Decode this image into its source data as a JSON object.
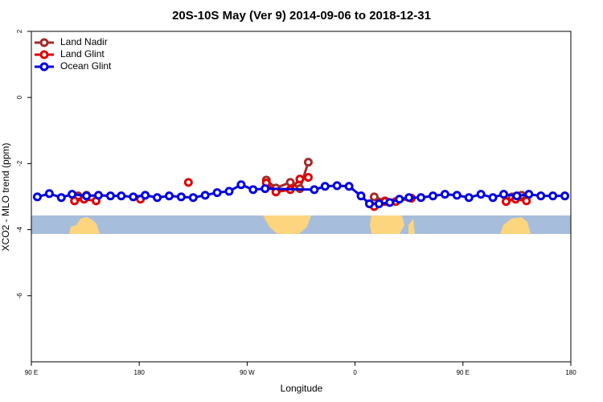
{
  "chart_data": {
    "type": "line",
    "title": "20S-10S May (Ver 9)   2014-09-06 to 2018-12-31",
    "xlabel": "Longitude",
    "ylabel": "XCO2 - MLO trend (ppm)",
    "xlim": [
      90,
      540
    ],
    "xticks": [
      {
        "value": 90,
        "label": "90 E"
      },
      {
        "value": 180,
        "label": "180"
      },
      {
        "value": 270,
        "label": "90 W"
      },
      {
        "value": 360,
        "label": "0"
      },
      {
        "value": 450,
        "label": "90 E"
      },
      {
        "value": 540,
        "label": "180"
      }
    ],
    "ylim": [
      -8,
      2
    ],
    "yticks": [
      2,
      0,
      -2,
      -4,
      -6
    ],
    "legend": "upper-left",
    "series": [
      {
        "name": "Land Nadir",
        "color": "#a52a2a",
        "x": [
          129,
          136,
          null,
          286,
          294,
          306,
          314,
          321,
          null,
          376,
          385,
          null,
          491,
          499
        ],
        "values": [
          -2.98,
          -2.96,
          null,
          -2.5,
          -2.74,
          -2.57,
          -2.76,
          -1.96,
          null,
          -3.01,
          -3.13,
          null,
          -3.01,
          -2.96
        ]
      },
      {
        "name": "Land Glint",
        "color": "#e00000",
        "x": [
          126,
          134,
          144,
          null,
          181,
          null,
          221,
          null,
          286,
          294,
          306,
          314,
          321,
          null,
          376,
          385,
          394,
          407,
          null,
          486,
          494,
          503
        ],
        "values": [
          -3.13,
          -3.08,
          -3.13,
          null,
          -3.08,
          null,
          -2.57,
          null,
          -2.59,
          -2.86,
          -2.79,
          -2.47,
          -2.42,
          null,
          -3.3,
          -3.15,
          -3.15,
          -3.05,
          null,
          -3.15,
          -3.08,
          -3.13
        ]
      },
      {
        "name": "Ocean Glint",
        "color": "#0000e0",
        "x": [
          95,
          105,
          115,
          124,
          136,
          146,
          156,
          165,
          175,
          185,
          195,
          205,
          215,
          225,
          235,
          245,
          255,
          265,
          275,
          285,
          326,
          335,
          345,
          355,
          365,
          372,
          380,
          389,
          397,
          405,
          415,
          425,
          435,
          445,
          455,
          465,
          475,
          484,
          495,
          505,
          515,
          525,
          535
        ],
        "values": [
          -3.01,
          -2.91,
          -3.03,
          -2.93,
          -2.98,
          -2.96,
          -2.98,
          -2.98,
          -3.01,
          -2.96,
          -3.03,
          -2.98,
          -3.01,
          -3.03,
          -2.96,
          -2.88,
          -2.84,
          -2.64,
          -2.79,
          -2.76,
          -2.79,
          -2.69,
          -2.67,
          -2.69,
          -2.98,
          -3.22,
          -3.22,
          -3.18,
          -3.08,
          -3.03,
          -3.03,
          -2.98,
          -2.93,
          -2.96,
          -3.03,
          -2.93,
          -3.03,
          -2.93,
          -2.98,
          -2.93,
          -2.98,
          -2.98,
          -2.98
        ]
      }
    ]
  }
}
